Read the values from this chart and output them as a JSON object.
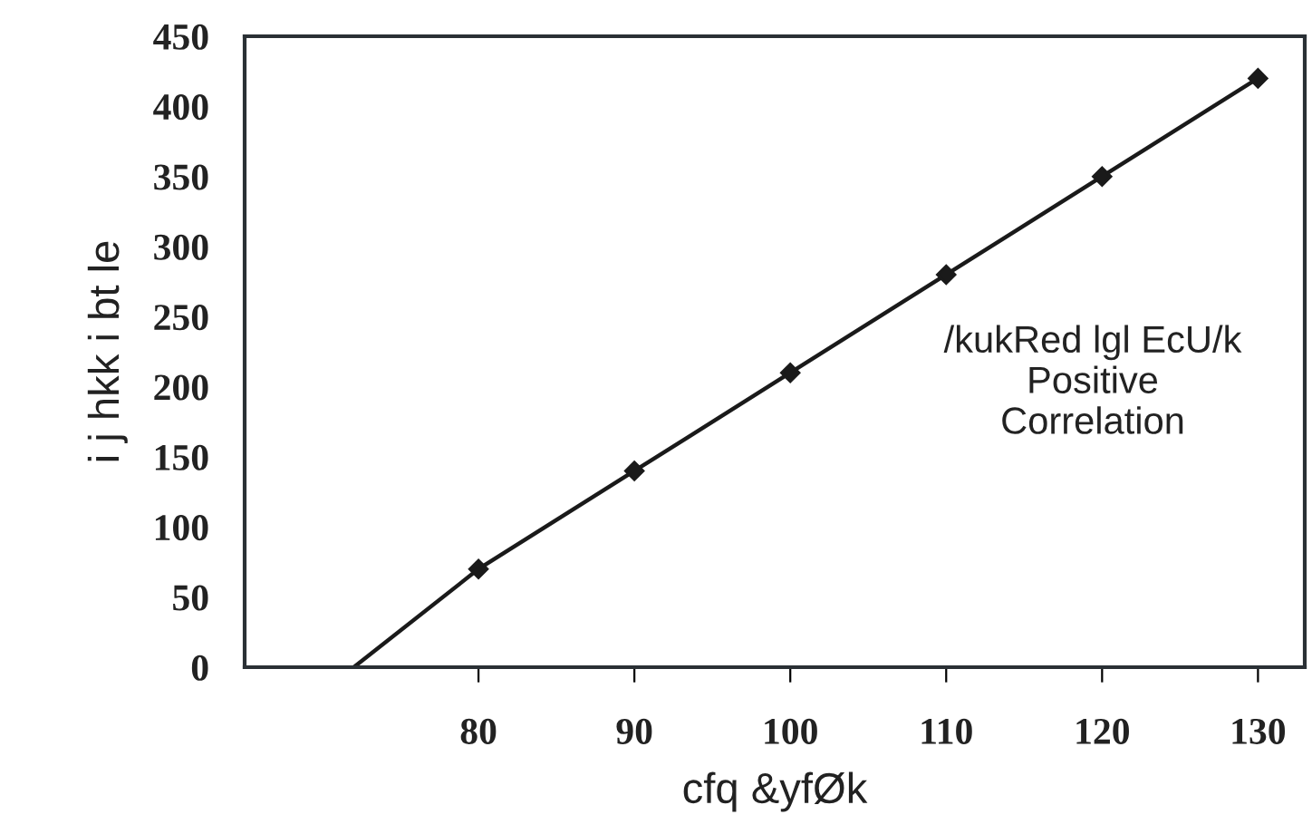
{
  "chart_data": {
    "type": "line",
    "xlabel": "cfq &yfØk",
    "ylabel": "i j hkk i bt le",
    "x": [
      80,
      90,
      100,
      110,
      120,
      130
    ],
    "series": [
      {
        "color": "#1a1a1a",
        "values": [
          70,
          140,
          210,
          280,
          350,
          420
        ],
        "marker": "diamond"
      },
      {
        "color": "#1a1a1a",
        "x": [
          72,
          80
        ],
        "values": [
          0,
          70
        ],
        "marker": "none"
      }
    ],
    "xlim": [
      65,
      133
    ],
    "xticks": [
      80,
      90,
      100,
      110,
      120,
      130
    ],
    "ylim": [
      0,
      450
    ],
    "yticks": [
      0,
      50,
      100,
      150,
      200,
      250,
      300,
      350,
      400,
      450
    ],
    "annotations": [
      "/kukRed lgl EcU/k\nPositive\nCorrelation"
    ],
    "grid": false,
    "legend": false,
    "line_style": "solid"
  }
}
